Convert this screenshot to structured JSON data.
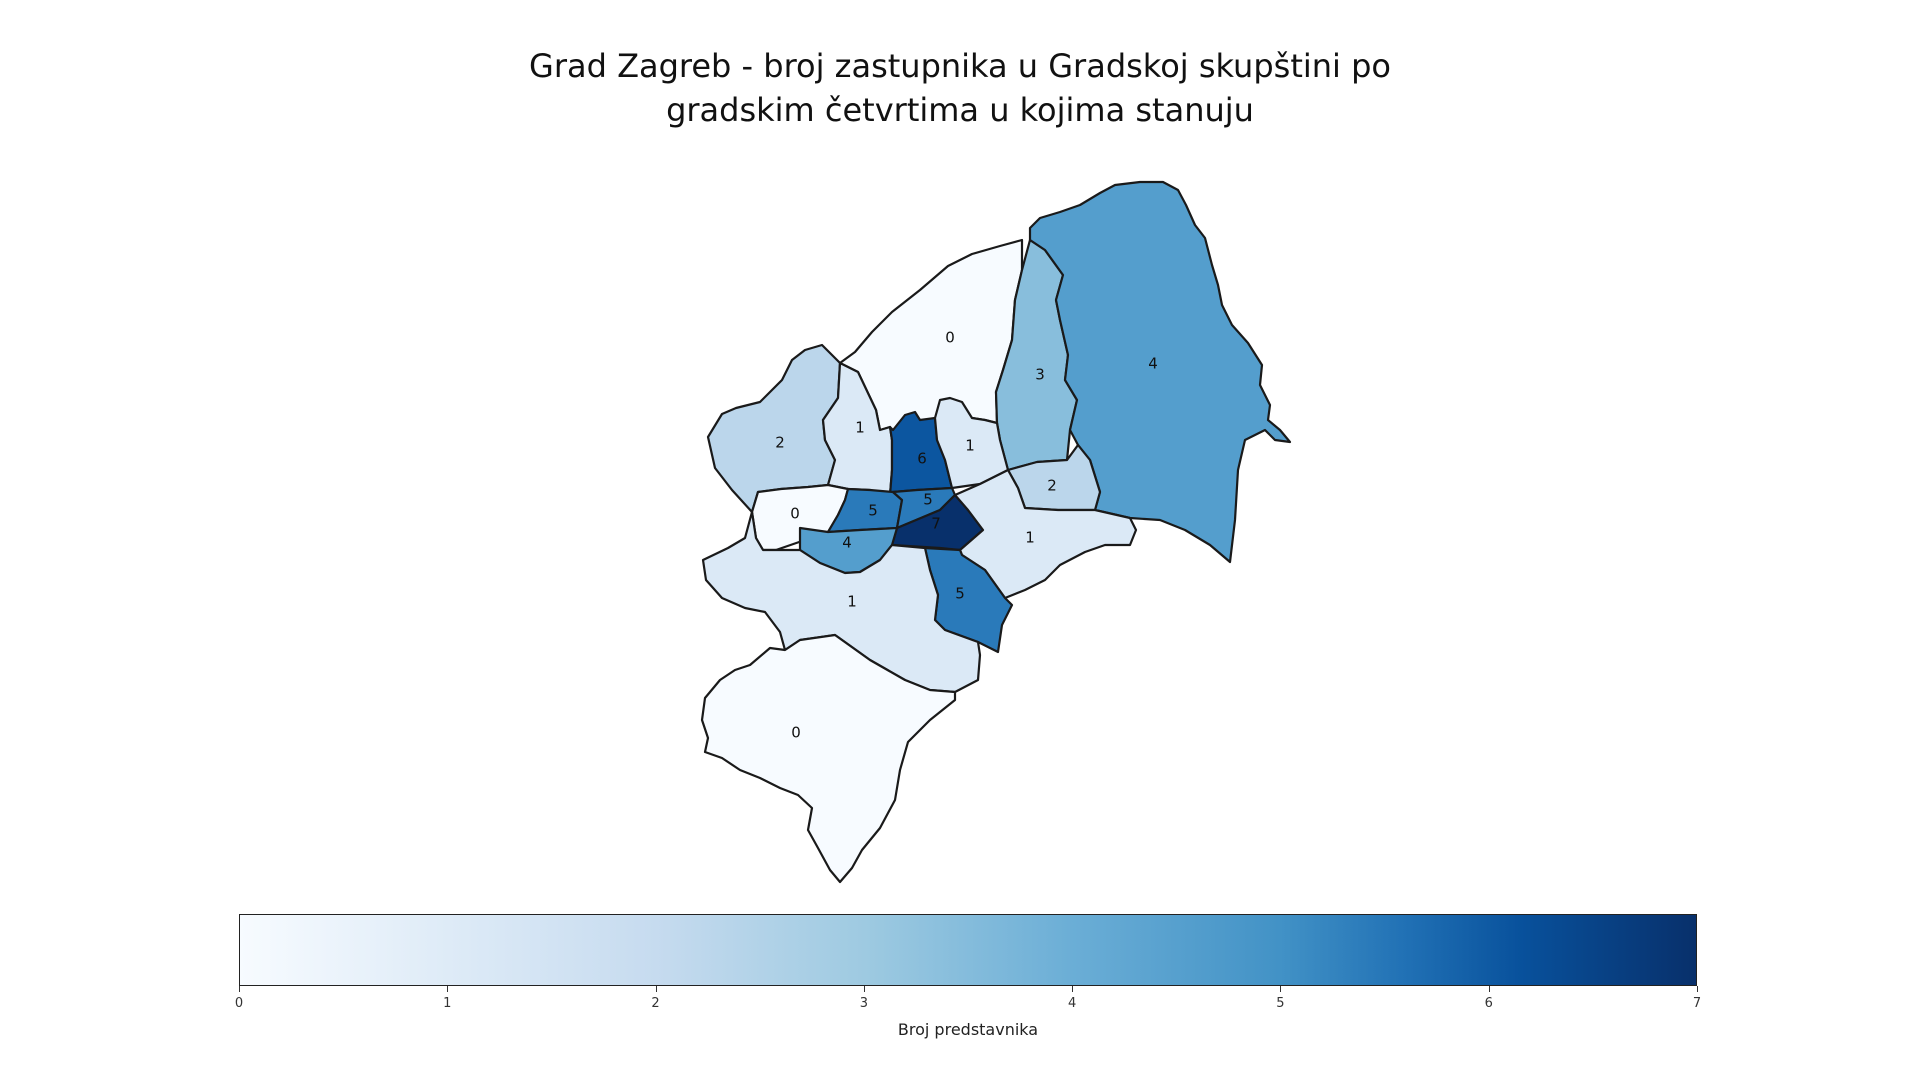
{
  "title": {
    "line1": "Grad Zagreb - broj zastupnika u Gradskoj skupštini po",
    "line2": "gradskim četvrtima u kojima stanuju"
  },
  "map": {
    "colormap": "Blues",
    "districts": [
      {
        "name": "north-central",
        "value": 0
      },
      {
        "name": "northeast-narrow",
        "value": 3
      },
      {
        "name": "east-large",
        "value": 4
      },
      {
        "name": "northwest",
        "value": 2
      },
      {
        "name": "north-west-narrow",
        "value": 1
      },
      {
        "name": "center-north",
        "value": 6
      },
      {
        "name": "center-northeast",
        "value": 1
      },
      {
        "name": "east-small",
        "value": 2
      },
      {
        "name": "west-center",
        "value": 0
      },
      {
        "name": "center-west",
        "value": 5
      },
      {
        "name": "center-middle",
        "value": 5
      },
      {
        "name": "center-core",
        "value": 7
      },
      {
        "name": "center-southwest",
        "value": 4
      },
      {
        "name": "southeast",
        "value": 1
      },
      {
        "name": "south-center",
        "value": 5
      },
      {
        "name": "southwest",
        "value": 1
      },
      {
        "name": "south",
        "value": 0
      }
    ]
  },
  "colorbar": {
    "label": "Broj predstavnika",
    "min": 0,
    "max": 7,
    "ticks": [
      "0",
      "1",
      "2",
      "3",
      "4",
      "5",
      "6",
      "7"
    ],
    "colors": [
      "#f7fbff",
      "#deebf7",
      "#c6dbef",
      "#9ecae1",
      "#6baed6",
      "#4292c6",
      "#2171b5",
      "#08306b"
    ]
  }
}
